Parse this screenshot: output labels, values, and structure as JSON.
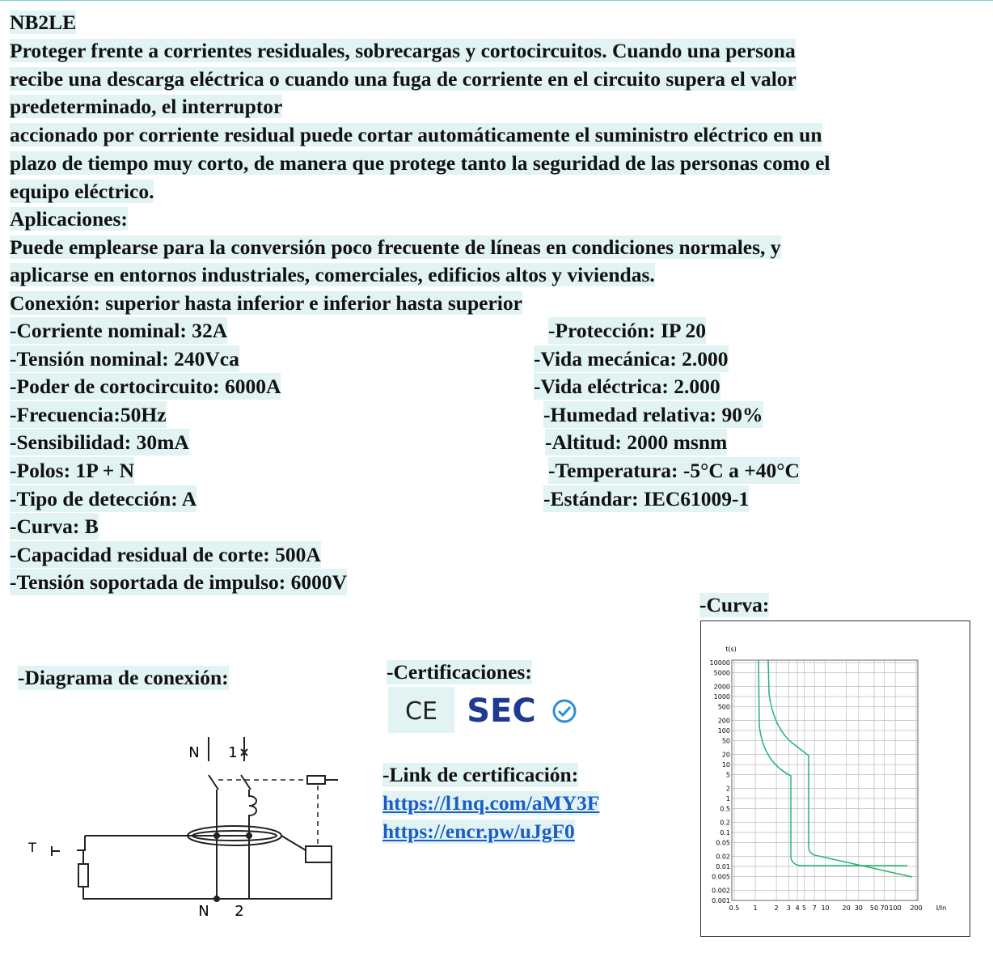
{
  "title": "NB2LE",
  "description": {
    "lines": [
      "Proteger frente a corrientes residuales, sobrecargas y cortocircuitos. Cuando una persona",
      "recibe una descarga eléctrica o cuando una fuga de corriente en el circuito supera el valor",
      "predeterminado, el interruptor",
      "accionado por corriente residual puede cortar automáticamente el suministro eléctrico en un",
      "plazo de tiempo muy corto, de manera que protege tanto la seguridad de las personas como el",
      "equipo eléctrico."
    ]
  },
  "applications": {
    "heading": "Aplicaciones:",
    "lines": [
      "Puede emplearse para la conversión poco frecuente de líneas en condiciones normales, y",
      "aplicarse en entornos industriales, comerciales, edificios altos y viviendas."
    ]
  },
  "connection": "Conexión:  superior hasta inferior e inferior hasta superior",
  "specs": {
    "left": [
      "-Corriente nominal: 32A",
      "-Tensión nominal: 240Vca",
      "-Poder de cortocircuito: 6000A",
      "-Frecuencia:50Hz",
      "-Sensibilidad: 30mA",
      "-Polos: 1P + N",
      "-Tipo de detección: A",
      "-Curva: B",
      "-Capacidad residual de corte: 500A",
      "-Tensión soportada de impulso: 6000V"
    ],
    "right": [
      "-Protección: IP 20",
      "-Vida mecánica: 2.000",
      "-Vida eléctrica: 2.000",
      "-Humedad relativa: 90%",
      "-Altitud: 2000 msnm",
      "-Temperatura: -5°C a +40°C",
      "-Estándar: IEC61009-1"
    ]
  },
  "curve": {
    "heading": "-Curva:",
    "y_axis_label": "t(s)",
    "x_axis_label": "I/In",
    "y_tick_labels": [
      "10000",
      "5000",
      "2000",
      "1000",
      "500",
      "200",
      "100",
      "50",
      "20",
      "10",
      "5",
      "2",
      "1",
      "0.5",
      "0.2",
      "0.1",
      "0.05",
      "0.02",
      "0.01",
      "0.005",
      "0.002",
      "0.001"
    ],
    "x_tick_labels": [
      "0.5",
      "1",
      "2",
      "3",
      "4",
      "5",
      "7",
      "10",
      "20",
      "30",
      "50",
      "70",
      "100",
      "200"
    ]
  },
  "connection_diagram": {
    "heading": "-Diagrama de conexión:",
    "labels": [
      "N",
      "1",
      "T",
      "N",
      "2"
    ]
  },
  "certifications": {
    "heading": "-Certificaciones:",
    "logos": [
      "CE",
      "SEC"
    ]
  },
  "certification_link": {
    "heading": "-Link de certificación:",
    "links": [
      "https://l1nq.com/aMY3F",
      "https://encr.pw/uJgF0"
    ]
  }
}
